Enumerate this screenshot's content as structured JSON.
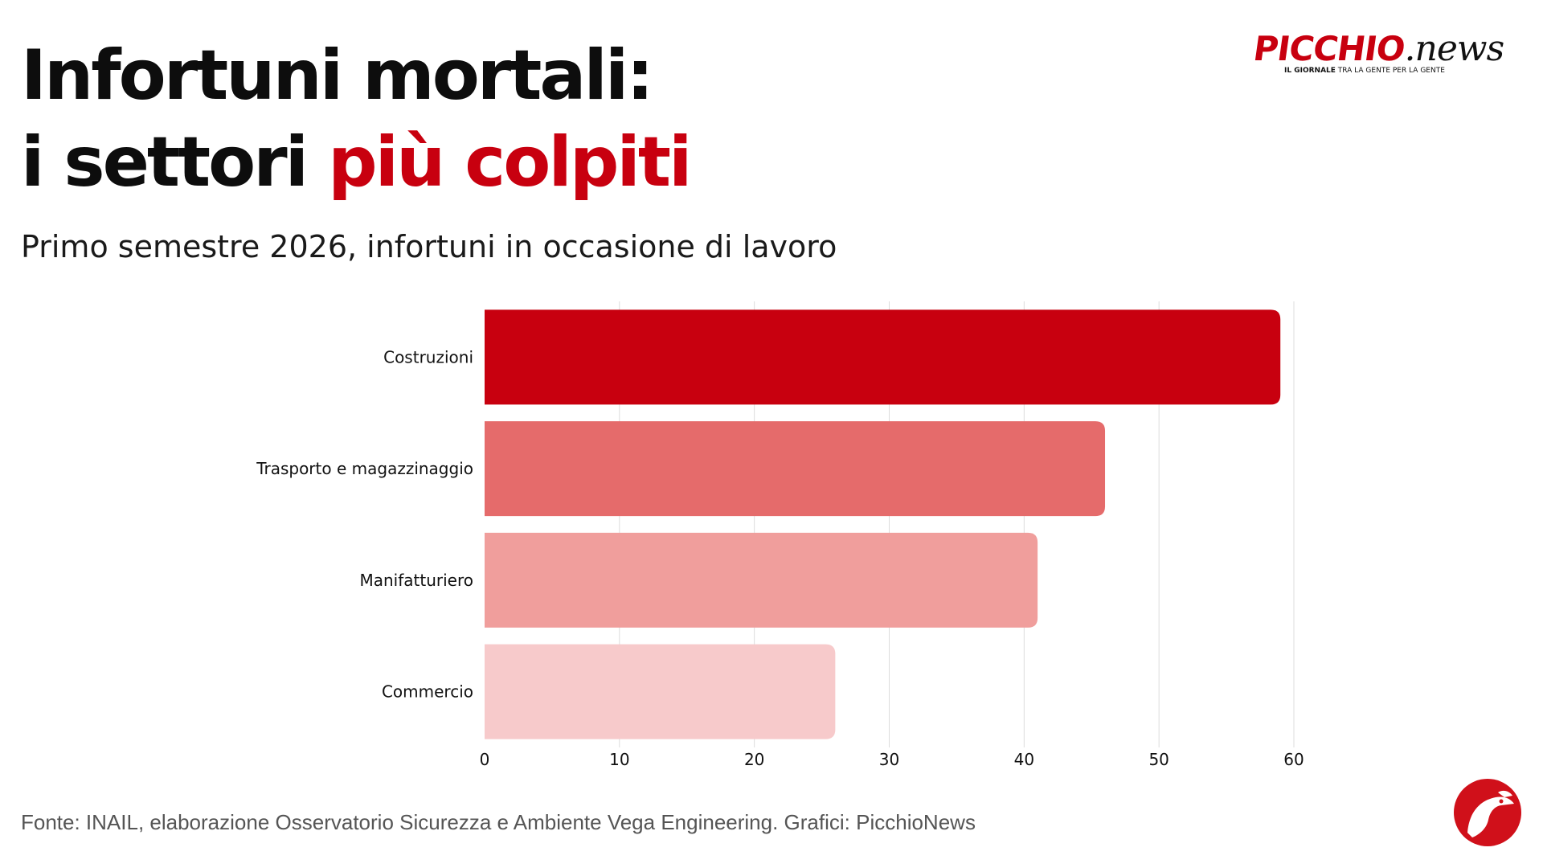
{
  "header": {
    "title_line1": "Infortuni mortali:",
    "title_line2_plain": "i settori ",
    "title_line2_accent": "più colpiti",
    "subtitle": "Primo semestre 2026, infortuni in occasione di lavoro"
  },
  "logo": {
    "brand": "PICCHIO",
    "suffix": ".news",
    "tagline_bold": "IL GIORNALE",
    "tagline_rest": " TRA LA GENTE PER LA GENTE"
  },
  "footer": {
    "source": "Fonte: INAIL, elaborazione Osservatorio Sicurezza e Ambiente Vega Engineering. Grafici: PicchioNews"
  },
  "colors": {
    "accent": "#c8000f",
    "bars": [
      "#c8000f",
      "#e56b6b",
      "#f09e9c",
      "#f7cacb"
    ],
    "grid": "#dddddd"
  },
  "icons": {
    "logo": "woodpecker-logo-icon",
    "badge": "woodpecker-badge-icon"
  },
  "chart_data": {
    "type": "bar",
    "orientation": "horizontal",
    "categories": [
      "Costruzioni",
      "Trasporto e magazzinaggio",
      "Manifatturiero",
      "Commercio"
    ],
    "values": [
      59,
      46,
      41,
      26
    ],
    "xlim": [
      0,
      60
    ],
    "xticks": [
      0,
      10,
      20,
      30,
      40,
      50,
      60
    ],
    "grid": true,
    "legend": "none"
  }
}
